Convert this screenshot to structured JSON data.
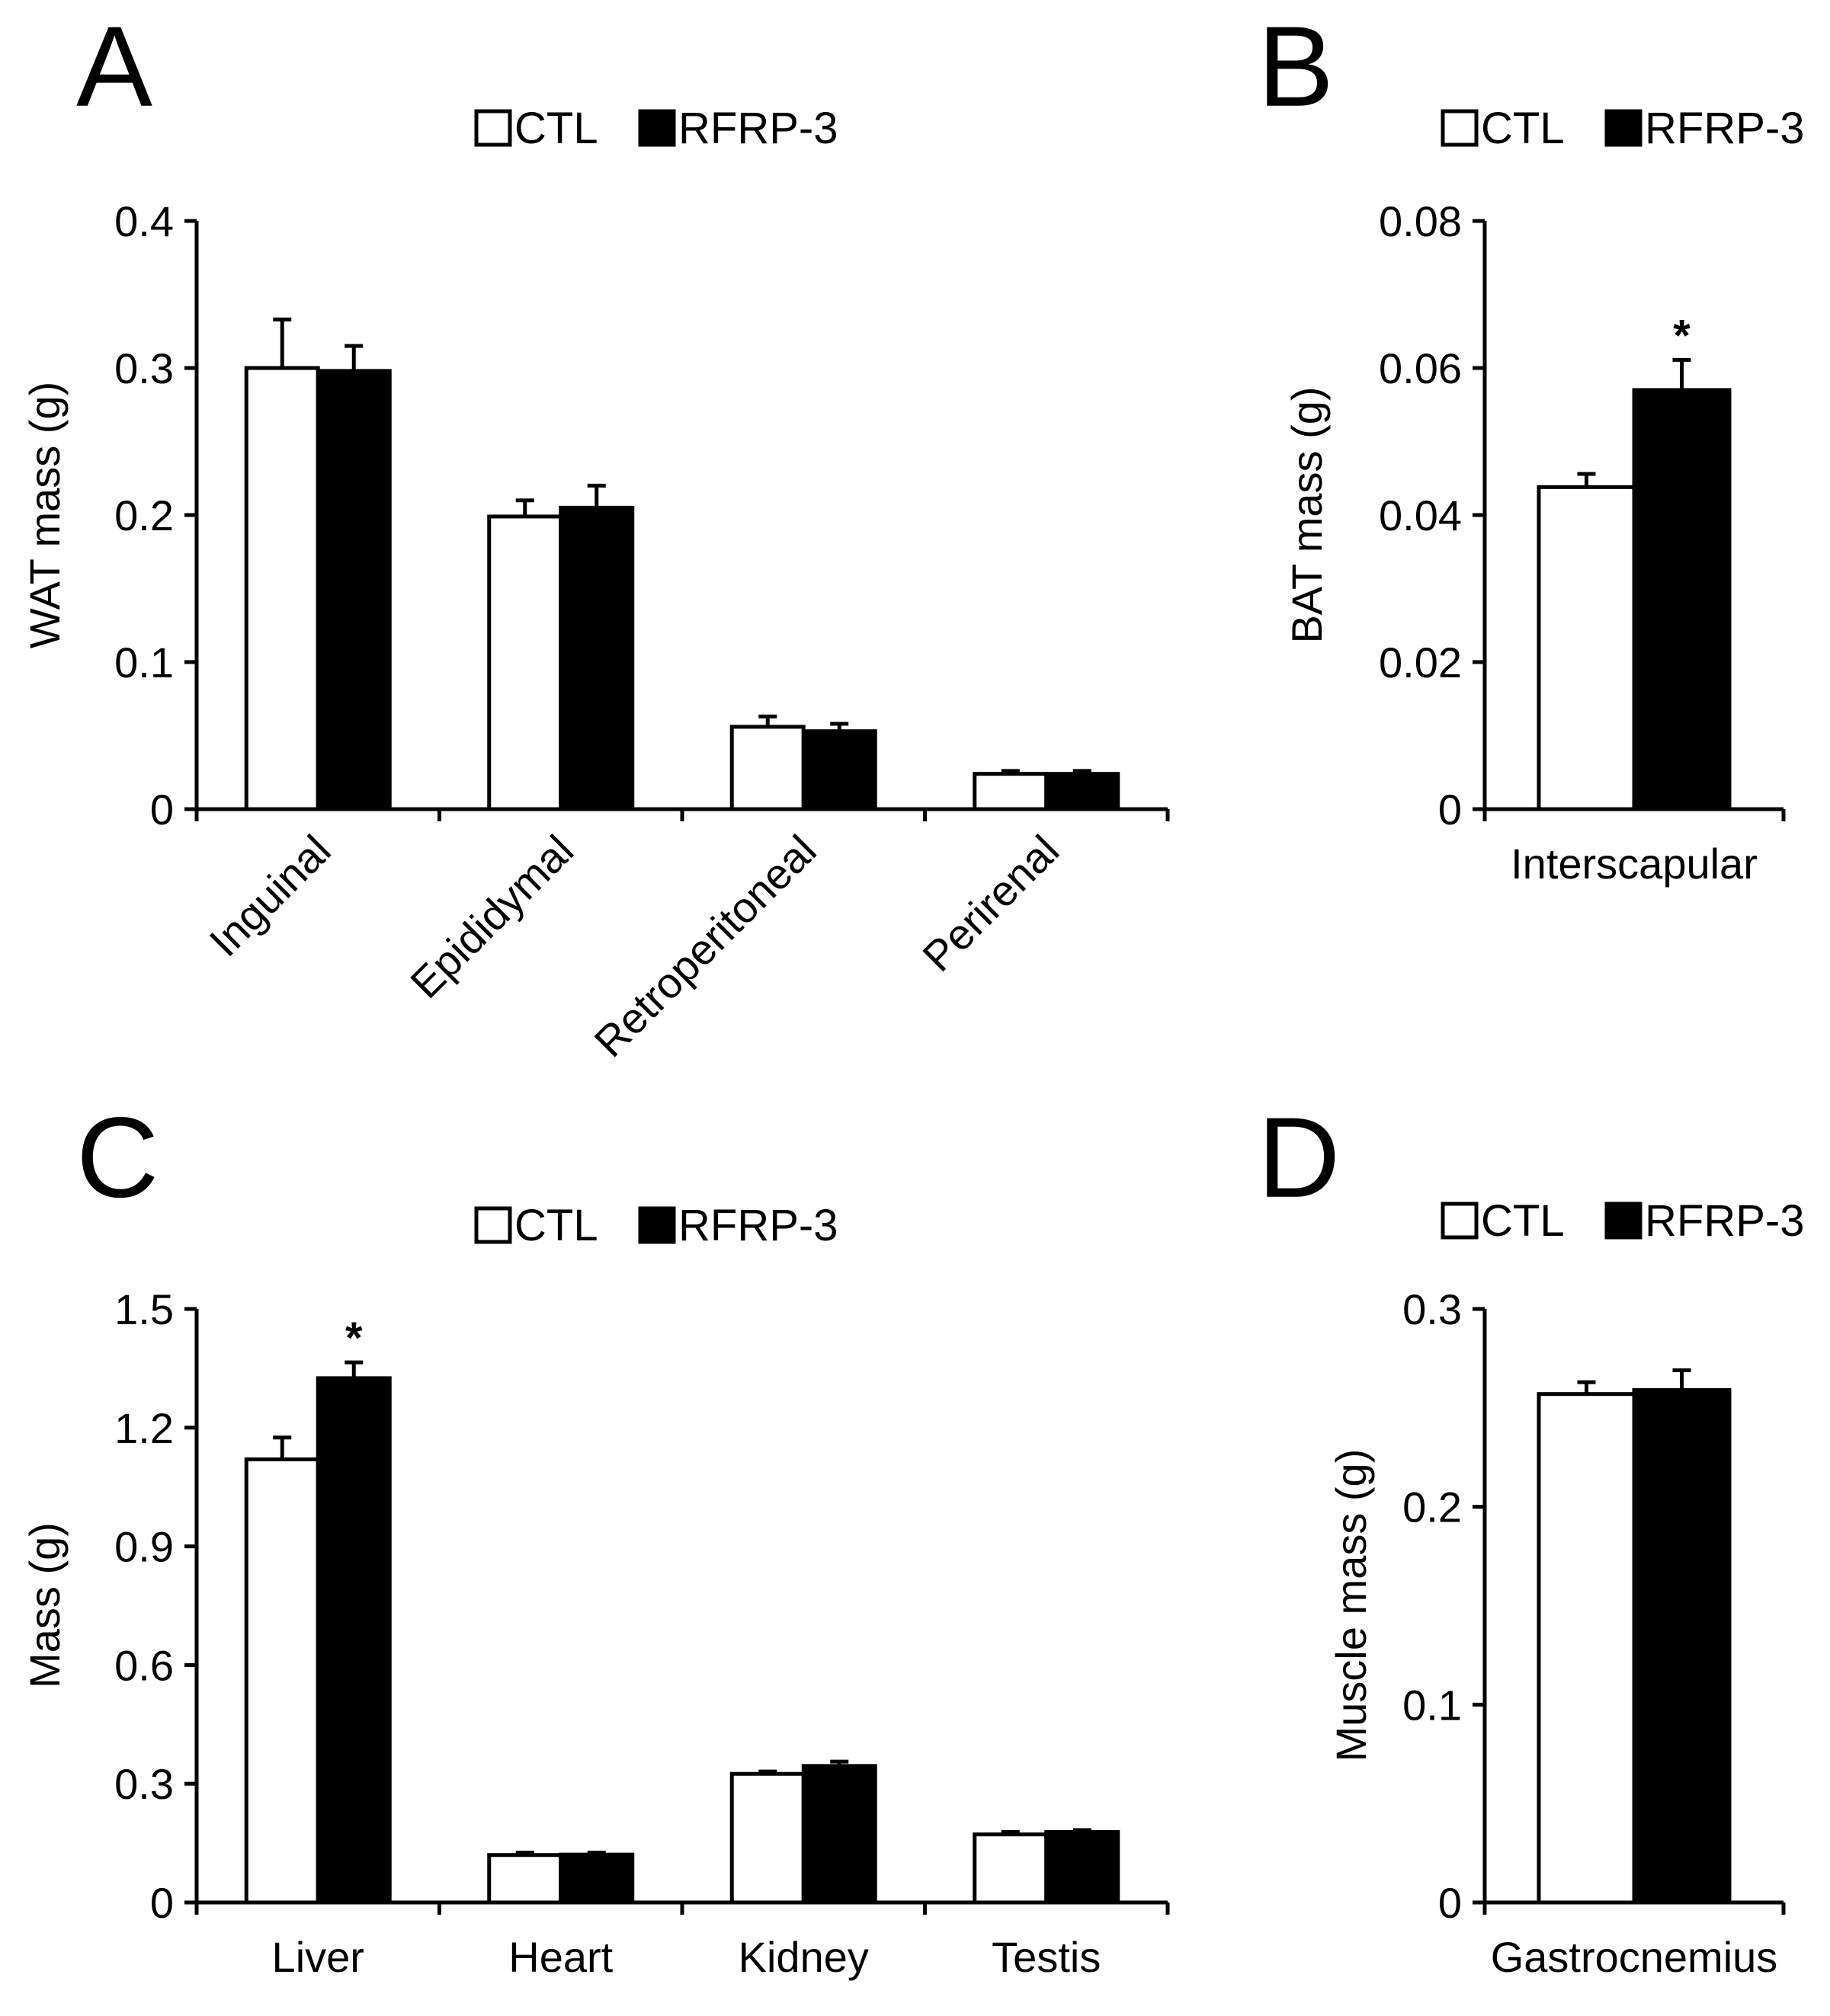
{
  "colors": {
    "ctl": "#ffffff",
    "rfrp3": "#000000",
    "axis": "#000000",
    "background": "#ffffff"
  },
  "chart_data": [
    {
      "panel": "A",
      "type": "bar",
      "legend": [
        "CTL",
        "RFRP-3"
      ],
      "ylabel": "WAT mass (g)",
      "ylim": [
        0,
        0.4
      ],
      "yticks": [
        0,
        0.1,
        0.2,
        0.3,
        0.4
      ],
      "ytick_labels": [
        "0",
        "0.1",
        "0.2",
        "0.3",
        "0.4"
      ],
      "categories": [
        "Inguinal",
        "Epididymal",
        "Retroperitoneal",
        "Perirenal"
      ],
      "rotate_labels": true,
      "series": [
        {
          "name": "CTL",
          "values": [
            0.3,
            0.199,
            0.056,
            0.024
          ],
          "errors": [
            0.033,
            0.011,
            0.007,
            0.002
          ]
        },
        {
          "name": "RFRP-3",
          "values": [
            0.298,
            0.205,
            0.053,
            0.024
          ],
          "errors": [
            0.017,
            0.015,
            0.005,
            0.002
          ]
        }
      ],
      "significance": [
        "",
        "",
        "",
        ""
      ]
    },
    {
      "panel": "B",
      "type": "bar",
      "legend": [
        "CTL",
        "RFRP-3"
      ],
      "ylabel": "BAT mass (g)",
      "ylim": [
        0,
        0.08
      ],
      "yticks": [
        0,
        0.02,
        0.04,
        0.06,
        0.08
      ],
      "ytick_labels": [
        "0",
        "0.02",
        "0.04",
        "0.06",
        "0.08"
      ],
      "categories": [
        "Interscapular"
      ],
      "rotate_labels": false,
      "series": [
        {
          "name": "CTL",
          "values": [
            0.0438
          ],
          "errors": [
            0.0018
          ]
        },
        {
          "name": "RFRP-3",
          "values": [
            0.057
          ],
          "errors": [
            0.0041
          ]
        }
      ],
      "significance": [
        "*"
      ]
    },
    {
      "panel": "C",
      "type": "bar",
      "legend": [
        "CTL",
        "RFRP-3"
      ],
      "ylabel": "Mass (g)",
      "ylim": [
        0,
        1.5
      ],
      "yticks": [
        0,
        0.3,
        0.6,
        0.9,
        1.2,
        1.5
      ],
      "ytick_labels": [
        "0",
        "0.3",
        "0.6",
        "0.9",
        "1.2",
        "1.5"
      ],
      "categories": [
        "Liver",
        "Heart",
        "Kidney",
        "Testis"
      ],
      "rotate_labels": false,
      "series": [
        {
          "name": "CTL",
          "values": [
            1.12,
            0.12,
            0.325,
            0.172
          ],
          "errors": [
            0.055,
            0.006,
            0.006,
            0.006
          ]
        },
        {
          "name": "RFRP-3",
          "values": [
            1.325,
            0.121,
            0.345,
            0.178
          ],
          "errors": [
            0.04,
            0.005,
            0.011,
            0.005
          ]
        }
      ],
      "significance": [
        "*",
        "",
        "",
        ""
      ]
    },
    {
      "panel": "D",
      "type": "bar",
      "legend": [
        "CTL",
        "RFRP-3"
      ],
      "ylabel": "Muscle mass (g)",
      "ylim": [
        0,
        0.3
      ],
      "yticks": [
        0,
        0.1,
        0.2,
        0.3
      ],
      "ytick_labels": [
        "0",
        "0.1",
        "0.2",
        "0.3"
      ],
      "categories": [
        "Gastrocnemius"
      ],
      "rotate_labels": false,
      "series": [
        {
          "name": "CTL",
          "values": [
            0.257
          ],
          "errors": [
            0.006
          ]
        },
        {
          "name": "RFRP-3",
          "values": [
            0.259
          ],
          "errors": [
            0.01
          ]
        }
      ],
      "significance": [
        ""
      ]
    }
  ]
}
